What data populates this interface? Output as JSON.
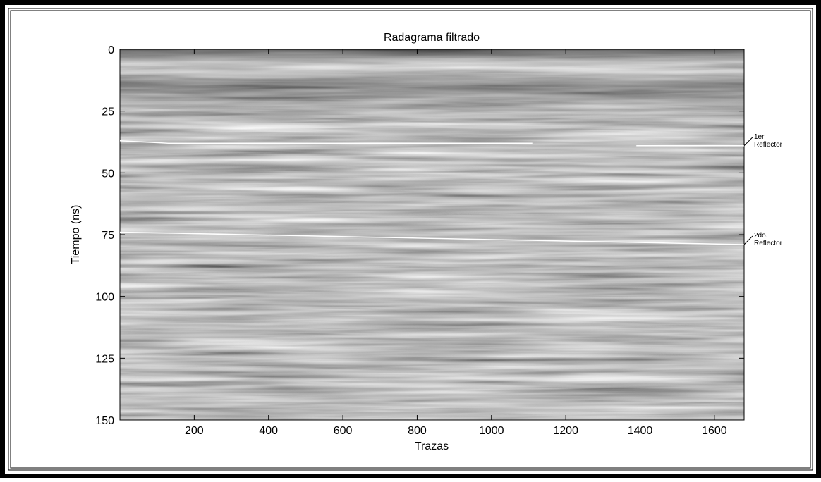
{
  "chart_data": {
    "type": "radargram",
    "title": "Radagrama filtrado",
    "xlabel": "Trazas",
    "ylabel": "Tiempo (ns)",
    "xlim": [
      0,
      1680
    ],
    "xticks": [
      200,
      400,
      600,
      800,
      1000,
      1200,
      1400,
      1600
    ],
    "ylim": [
      0,
      150
    ],
    "yticks": [
      0,
      25,
      50,
      75,
      100,
      125,
      150
    ],
    "y_reversed": true,
    "series": [
      {
        "label": [
          "1er",
          "Reflector"
        ],
        "color": "#ffffff",
        "x": [
          0,
          130,
          960,
          null,
          960,
          1110,
          null,
          1390,
          1680
        ],
        "values": [
          37,
          38,
          38,
          null,
          38,
          38,
          null,
          39,
          39
        ]
      },
      {
        "label": [
          "2do.",
          "Reflector"
        ],
        "color": "#ffffff",
        "x": [
          0,
          1680
        ],
        "values": [
          74,
          79
        ]
      }
    ]
  }
}
